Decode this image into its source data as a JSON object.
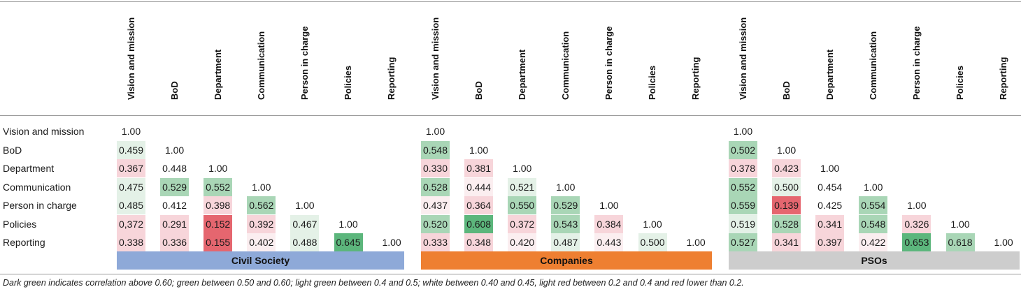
{
  "columns": [
    "Vision and mission",
    "BoD",
    "Department",
    "Communication",
    "Person in charge",
    "Policies",
    "Reporting"
  ],
  "rows": [
    "Vision and mission",
    "BoD",
    "Department",
    "Communication",
    "Person in charge",
    "Policies",
    "Reporting"
  ],
  "groups": [
    {
      "name": "Civil Society",
      "color": "#8ea9d8",
      "values": [
        [
          "1.00"
        ],
        [
          "0.459",
          "1.00"
        ],
        [
          "0.367",
          "0.448",
          "1.00"
        ],
        [
          "0.475",
          "0.529",
          "0.552",
          "1.00"
        ],
        [
          "0.485",
          "0.412",
          "0.398",
          "0.562",
          "1.00"
        ],
        [
          "0,372",
          "0.291",
          "0.152",
          "0.392",
          "0.467",
          "1.00"
        ],
        [
          "0.338",
          "0.336",
          "0.155",
          "0.402",
          "0.488",
          "0.645",
          "1.00"
        ]
      ],
      "shades": [
        [
          "none"
        ],
        [
          "lg",
          "none"
        ],
        [
          "lr",
          "none",
          "none"
        ],
        [
          "lg",
          "g",
          "g",
          "none"
        ],
        [
          "lg",
          "none",
          "lr",
          "g",
          "none"
        ],
        [
          "lr",
          "lr",
          "r",
          "lr",
          "lg",
          "none"
        ],
        [
          "lr",
          "lr",
          "r",
          "w",
          "lg",
          "dg",
          "none"
        ]
      ]
    },
    {
      "name": "Companies",
      "color": "#ee7f31",
      "values": [
        [
          "1.00"
        ],
        [
          "0.548",
          "1.00"
        ],
        [
          "0.330",
          "0.381",
          "1.00"
        ],
        [
          "0.528",
          "0.444",
          "0.521",
          "1.00"
        ],
        [
          "0.437",
          "0.364",
          "0.550",
          "0.529",
          "1.00"
        ],
        [
          "0.520",
          "0.608",
          "0.372",
          "0.543",
          "0.384",
          "1.00"
        ],
        [
          "0.333",
          "0.348",
          "0.420",
          "0.487",
          "0.443",
          "0.500",
          "1.00"
        ]
      ],
      "shades": [
        [
          "none"
        ],
        [
          "g",
          "none"
        ],
        [
          "lr",
          "lr",
          "none"
        ],
        [
          "g",
          "w",
          "lg",
          "none"
        ],
        [
          "w",
          "lr",
          "g",
          "g",
          "none"
        ],
        [
          "g",
          "dg",
          "lr",
          "g",
          "lr",
          "none"
        ],
        [
          "lr",
          "lr",
          "w",
          "lg",
          "w",
          "lg",
          "none"
        ]
      ]
    },
    {
      "name": "PSOs",
      "color": "#cdcdcd",
      "values": [
        [
          "1.00"
        ],
        [
          "0.502",
          "1.00"
        ],
        [
          "0.378",
          "0.423",
          "1.00"
        ],
        [
          "0.552",
          "0.500",
          "0.454",
          "1.00"
        ],
        [
          "0.559",
          "0.139",
          "0.425",
          "0.554",
          "1.00"
        ],
        [
          "0.519",
          "0.528",
          "0.341",
          "0.548",
          "0.326",
          "1.00"
        ],
        [
          "0.527",
          "0.341",
          "0.397",
          "0.422",
          "0.653",
          "0.618",
          "1.00"
        ]
      ],
      "shades": [
        [
          "none"
        ],
        [
          "g",
          "none"
        ],
        [
          "lr",
          "lr",
          "none"
        ],
        [
          "g",
          "lg",
          "none",
          "none"
        ],
        [
          "g",
          "r",
          "none",
          "g",
          "none"
        ],
        [
          "lg",
          "g",
          "lr",
          "g",
          "lr",
          "none"
        ],
        [
          "g",
          "lr",
          "lr",
          "w",
          "dg",
          "g",
          "none"
        ]
      ]
    }
  ],
  "shade_colors": {
    "dg": "#5cb67c",
    "g": "#a9d6b6",
    "lg": "#e4f1e7",
    "w": "#fbeef0",
    "lr": "#f7d5da",
    "r": "#e5666f",
    "none": "#ffffff"
  },
  "footnote": "Dark green indicates correlation above 0.60; green between 0.50 and 0.60; light green between 0.4 and 0.5; white between 0.40 and 0.45, light red between 0.2 and 0.4 and red lower than 0.2."
}
